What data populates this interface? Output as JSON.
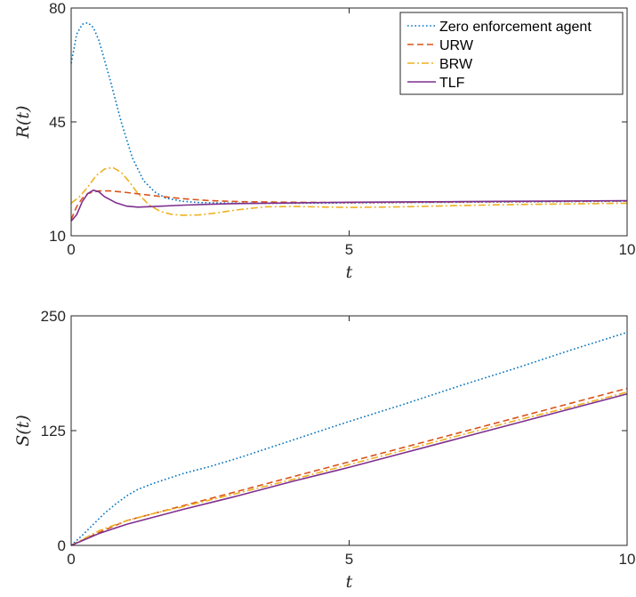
{
  "chart_data": [
    {
      "type": "line",
      "xlabel": "t",
      "ylabel": "R(t)",
      "xlim": [
        0,
        10
      ],
      "ylim": [
        10,
        80
      ],
      "xticks": [
        "0",
        "5",
        "10"
      ],
      "yticks": [
        "10",
        "45",
        "80"
      ],
      "legend": "top-right",
      "series": [
        {
          "name": "Zero enforcement agent",
          "color": "#0072BD",
          "dash": "dotted",
          "x": [
            0,
            0.1,
            0.2,
            0.3,
            0.4,
            0.5,
            0.7,
            0.9,
            1.1,
            1.3,
            1.5,
            1.7,
            2.0,
            2.3,
            2.6,
            3,
            4,
            5,
            6,
            7,
            8,
            9,
            10
          ],
          "y": [
            63,
            72,
            75,
            75.5,
            74,
            70,
            58,
            45,
            34,
            27,
            23.5,
            21.6,
            20.6,
            20.2,
            20.1,
            20,
            20,
            20.1,
            20.2,
            20.3,
            20.4,
            20.5,
            20.6
          ]
        },
        {
          "name": "URW",
          "color": "#D95319",
          "dash": "dashed",
          "x": [
            0,
            0.1,
            0.2,
            0.3,
            0.5,
            0.7,
            1.0,
            1.5,
            2.0,
            2.5,
            3,
            4,
            5,
            6,
            7,
            8,
            9,
            10
          ],
          "y": [
            15,
            19,
            21.5,
            23,
            23.8,
            23.8,
            23.3,
            22.3,
            21.4,
            20.8,
            20.5,
            20.3,
            20.2,
            20.3,
            20.4,
            20.5,
            20.6,
            20.7
          ]
        },
        {
          "name": "BRW",
          "color": "#EDB120",
          "dash": "dashdot",
          "x": [
            0,
            0.15,
            0.3,
            0.45,
            0.6,
            0.75,
            0.9,
            1.05,
            1.2,
            1.4,
            1.6,
            1.8,
            2.0,
            2.3,
            2.6,
            3,
            3.5,
            4,
            5,
            6,
            7,
            8,
            9,
            10
          ],
          "y": [
            20,
            22,
            25,
            28.5,
            30.5,
            31,
            29.5,
            26.5,
            23,
            19.5,
            17.5,
            16.6,
            16.3,
            16.4,
            17,
            18,
            18.9,
            19,
            18.7,
            18.9,
            19.3,
            19.6,
            19.8,
            20
          ]
        },
        {
          "name": "TLF",
          "color": "#7E2F8E",
          "dash": "solid",
          "x": [
            0,
            0.1,
            0.2,
            0.3,
            0.4,
            0.5,
            0.6,
            0.8,
            1.0,
            1.2,
            1.5,
            2.0,
            2.5,
            3,
            4,
            5,
            6,
            7,
            8,
            9,
            10
          ],
          "y": [
            14.5,
            16.5,
            20.5,
            23,
            24,
            23.5,
            22,
            20.2,
            19.1,
            18.8,
            19,
            19.4,
            19.7,
            19.9,
            20.1,
            20.3,
            20.4,
            20.5,
            20.6,
            20.7,
            20.8
          ]
        }
      ]
    },
    {
      "type": "line",
      "xlabel": "t",
      "ylabel": "S(t)",
      "xlim": [
        0,
        10
      ],
      "ylim": [
        0,
        250
      ],
      "xticks": [
        "0",
        "5",
        "10"
      ],
      "yticks": [
        "0",
        "125",
        "250"
      ],
      "series": [
        {
          "name": "Zero enforcement agent",
          "color": "#0072BD",
          "dash": "dotted",
          "x": [
            0,
            0.2,
            0.4,
            0.6,
            0.8,
            1.0,
            1.2,
            1.5,
            2.0,
            2.5,
            3,
            4,
            5,
            6,
            7,
            8,
            9,
            10
          ],
          "y": [
            0,
            11,
            23,
            35,
            45,
            54,
            61,
            68,
            78,
            86,
            95,
            115,
            135,
            154,
            174,
            193,
            213,
            232
          ]
        },
        {
          "name": "URW",
          "color": "#D95319",
          "dash": "dashed",
          "x": [
            0,
            0.5,
            1.0,
            1.5,
            2.0,
            3,
            4,
            5,
            6,
            7,
            8,
            9,
            10
          ],
          "y": [
            0,
            14,
            27,
            35,
            43,
            59,
            75,
            91,
            107,
            123,
            139,
            155,
            171
          ]
        },
        {
          "name": "BRW",
          "color": "#EDB120",
          "dash": "dashdot",
          "x": [
            0,
            0.5,
            1.0,
            1.5,
            2.0,
            3,
            4,
            5,
            6,
            7,
            8,
            9,
            10
          ],
          "y": [
            0,
            16,
            27,
            35,
            42,
            57,
            72,
            88,
            104,
            120,
            136,
            151,
            167
          ]
        },
        {
          "name": "TLF",
          "color": "#7E2F8E",
          "dash": "solid",
          "x": [
            0,
            0.5,
            1.0,
            1.5,
            2.0,
            3,
            4,
            5,
            6,
            7,
            8,
            9,
            10
          ],
          "y": [
            0,
            13,
            23,
            31,
            39,
            54,
            70,
            85,
            101,
            117,
            133,
            149,
            165
          ]
        }
      ]
    }
  ]
}
